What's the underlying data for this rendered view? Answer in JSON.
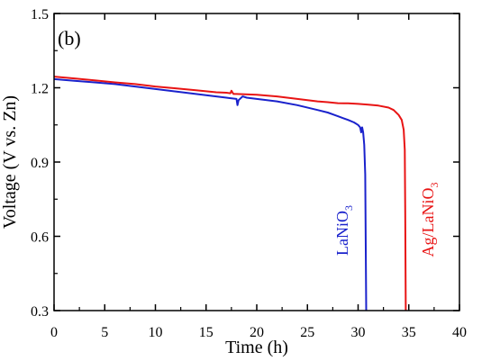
{
  "chart_data": {
    "type": "line",
    "panel_label": "(b)",
    "xlabel": "Time (h)",
    "ylabel": "Voltage (V vs. Zn)",
    "xlim": [
      0,
      40
    ],
    "ylim": [
      0.3,
      1.5
    ],
    "xticks": [
      0,
      5,
      10,
      15,
      20,
      25,
      30,
      35,
      40
    ],
    "yticks": [
      0.3,
      0.6,
      0.9,
      1.2,
      1.5
    ],
    "grid": false,
    "series": [
      {
        "name": "LaNiO",
        "subscript": "3",
        "color": "#1a22cc",
        "points": [
          [
            0,
            1.235
          ],
          [
            2,
            1.228
          ],
          [
            4,
            1.222
          ],
          [
            6,
            1.215
          ],
          [
            8,
            1.205
          ],
          [
            10,
            1.195
          ],
          [
            12,
            1.185
          ],
          [
            14,
            1.175
          ],
          [
            16,
            1.165
          ],
          [
            17,
            1.16
          ],
          [
            18,
            1.155
          ],
          [
            18.1,
            1.13
          ],
          [
            18.2,
            1.15
          ],
          [
            18.6,
            1.165
          ],
          [
            19,
            1.16
          ],
          [
            20,
            1.155
          ],
          [
            22,
            1.145
          ],
          [
            24,
            1.13
          ],
          [
            26,
            1.11
          ],
          [
            27,
            1.1
          ],
          [
            28,
            1.085
          ],
          [
            29,
            1.07
          ],
          [
            29.6,
            1.06
          ],
          [
            30,
            1.05
          ],
          [
            30.2,
            1.04
          ],
          [
            30.3,
            1.02
          ],
          [
            30.4,
            1.04
          ],
          [
            30.5,
            1.02
          ],
          [
            30.6,
            0.97
          ],
          [
            30.7,
            0.85
          ],
          [
            30.75,
            0.6
          ],
          [
            30.8,
            0.3
          ]
        ]
      },
      {
        "name": "Ag/LaNiO",
        "subscript": "3",
        "color": "#e81414",
        "points": [
          [
            0,
            1.245
          ],
          [
            2,
            1.238
          ],
          [
            4,
            1.23
          ],
          [
            6,
            1.222
          ],
          [
            8,
            1.215
          ],
          [
            10,
            1.205
          ],
          [
            12,
            1.198
          ],
          [
            14,
            1.19
          ],
          [
            16,
            1.182
          ],
          [
            17,
            1.18
          ],
          [
            17.4,
            1.178
          ],
          [
            17.5,
            1.188
          ],
          [
            17.7,
            1.175
          ],
          [
            18,
            1.175
          ],
          [
            20,
            1.172
          ],
          [
            22,
            1.165
          ],
          [
            24,
            1.155
          ],
          [
            26,
            1.145
          ],
          [
            27,
            1.142
          ],
          [
            28,
            1.138
          ],
          [
            29,
            1.137
          ],
          [
            30,
            1.135
          ],
          [
            31,
            1.132
          ],
          [
            32,
            1.128
          ],
          [
            33,
            1.12
          ],
          [
            33.5,
            1.11
          ],
          [
            34,
            1.09
          ],
          [
            34.3,
            1.07
          ],
          [
            34.5,
            1.03
          ],
          [
            34.6,
            0.95
          ],
          [
            34.65,
            0.7
          ],
          [
            34.7,
            0.3
          ]
        ]
      }
    ]
  }
}
